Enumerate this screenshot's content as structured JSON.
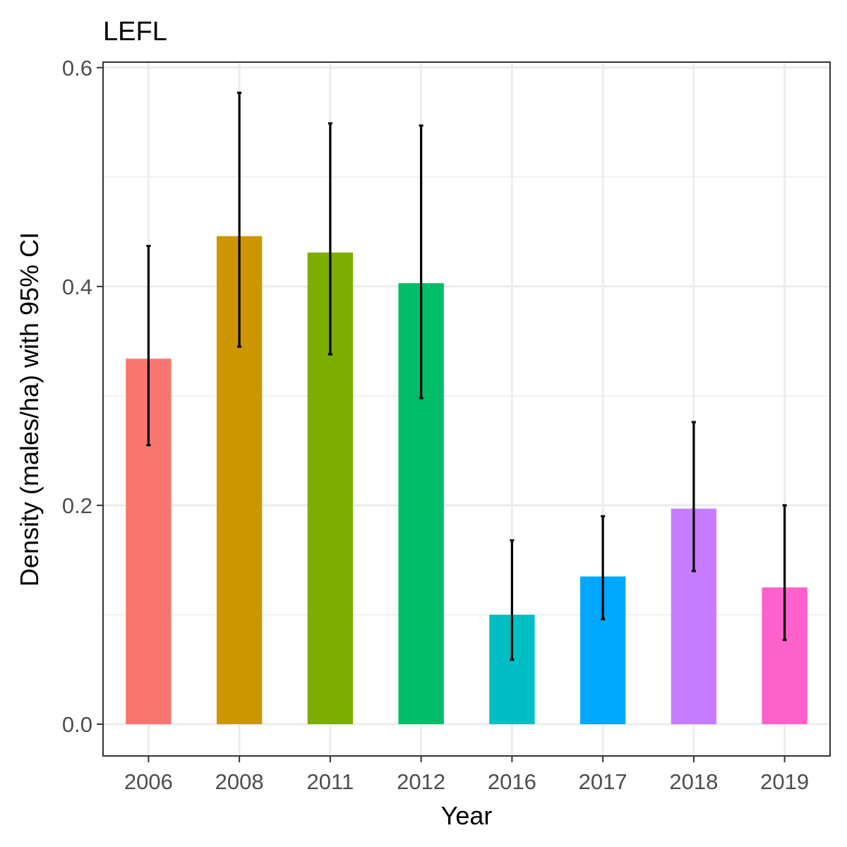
{
  "chart_data": {
    "type": "bar",
    "title": "LEFL",
    "xlabel": "Year",
    "ylabel": "Density (males/ha) with 95% CI",
    "categories": [
      "2006",
      "2008",
      "2011",
      "2012",
      "2016",
      "2017",
      "2018",
      "2019"
    ],
    "values": [
      0.334,
      0.446,
      0.431,
      0.403,
      0.1,
      0.135,
      0.197,
      0.125
    ],
    "ci_lower": [
      0.255,
      0.345,
      0.338,
      0.298,
      0.059,
      0.096,
      0.14,
      0.077
    ],
    "ci_upper": [
      0.437,
      0.577,
      0.549,
      0.547,
      0.168,
      0.19,
      0.276,
      0.2
    ],
    "ylim": [
      -0.029,
      0.605
    ],
    "yticks": [
      0.0,
      0.2,
      0.4,
      0.6
    ],
    "ytick_labels": [
      "0.0",
      "0.2",
      "0.4",
      "0.6"
    ],
    "grid": true,
    "legend": "none",
    "colors": [
      "#F8766D",
      "#CD9600",
      "#7CAE00",
      "#00BE67",
      "#00BFC4",
      "#00A9FF",
      "#C77CFF",
      "#FF61CC"
    ]
  }
}
